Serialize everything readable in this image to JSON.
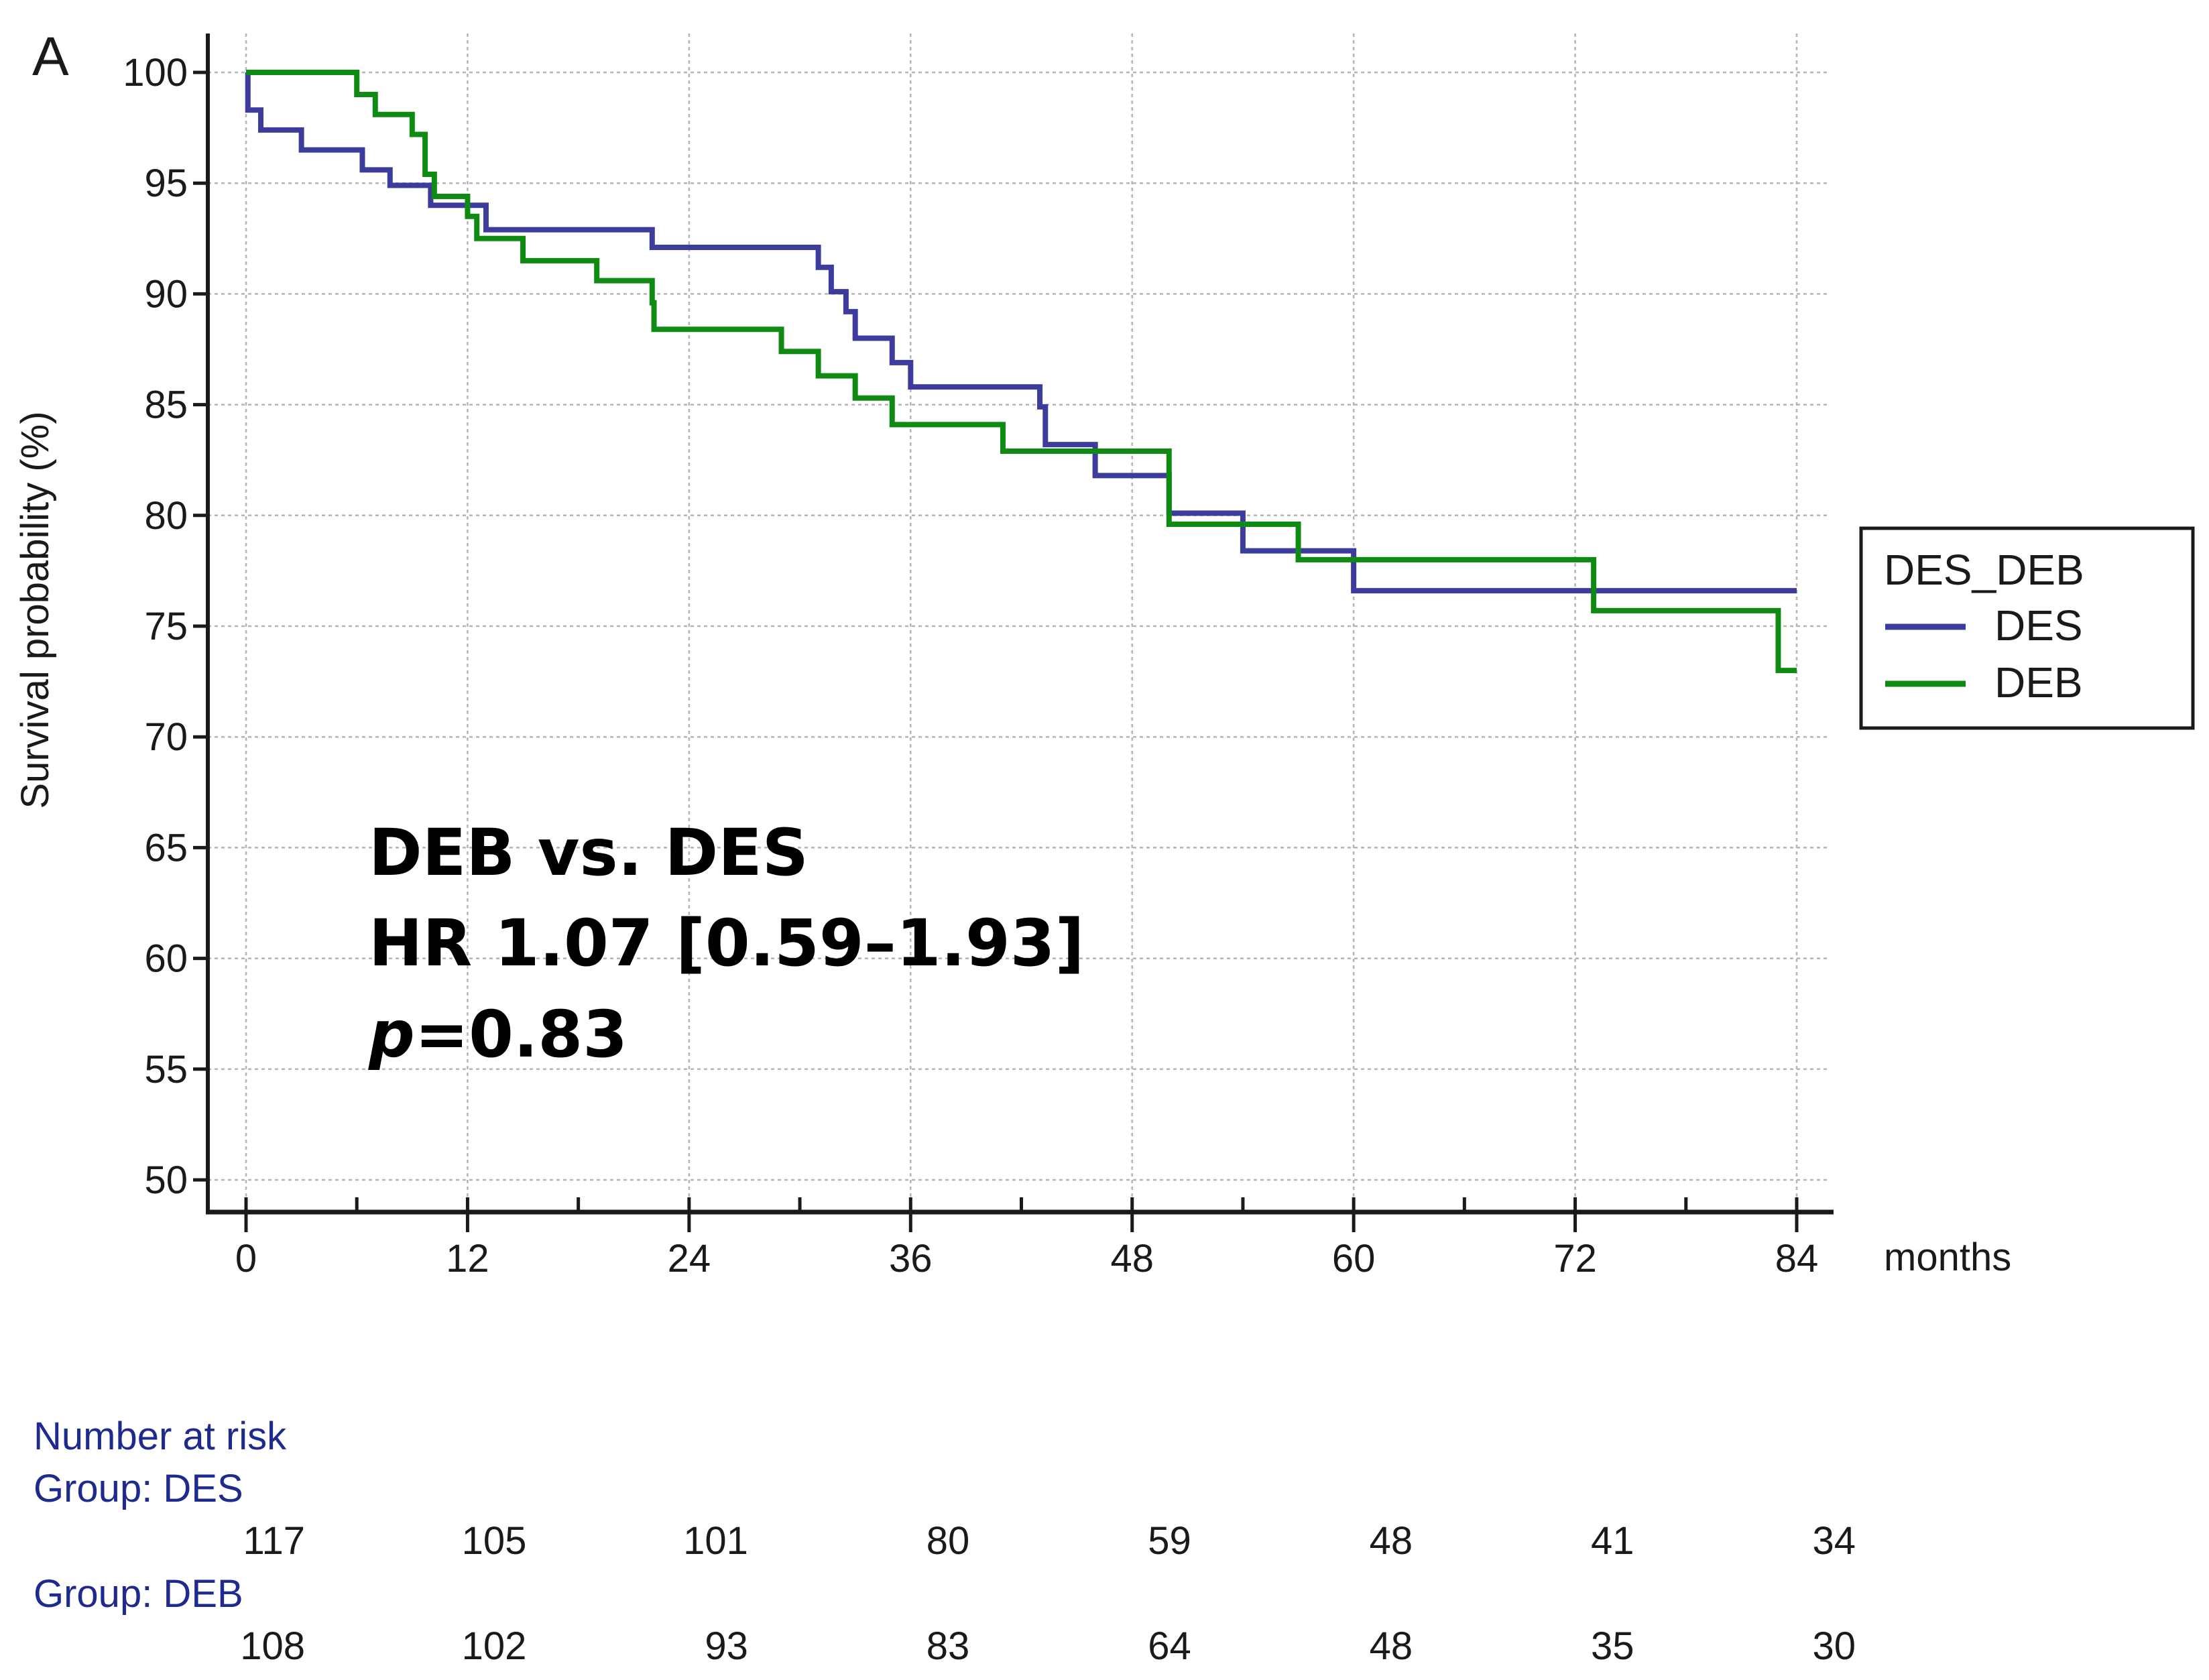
{
  "chart_data": {
    "type": "line",
    "subtype": "kaplan-meier",
    "panel_label": "A",
    "ylabel": "Survival probability (%)",
    "xlabel": "months",
    "xlim": [
      0,
      84
    ],
    "ylim": [
      50,
      100
    ],
    "x_ticks": [
      0,
      12,
      24,
      36,
      48,
      60,
      72,
      84
    ],
    "y_ticks": [
      50,
      55,
      60,
      65,
      70,
      75,
      80,
      85,
      90,
      95,
      100
    ],
    "grid": true,
    "legend": {
      "title": "DES_DEB",
      "placement": "right",
      "entries": [
        {
          "name": "DES",
          "color": "#3c3c9c"
        },
        {
          "name": "DEB",
          "color": "#0f8a12"
        }
      ]
    },
    "annotation": {
      "line1": "DEB vs. DES",
      "line2": "HR 1.07 [0.59–1.93]",
      "p_symbol": "p",
      "p_value": "=0.83"
    },
    "series": [
      {
        "name": "DES",
        "color": "#3c3c9c",
        "steps": [
          [
            0,
            100
          ],
          [
            0.1,
            98.3
          ],
          [
            0.8,
            97.4
          ],
          [
            3,
            96.5
          ],
          [
            6.3,
            95.6
          ],
          [
            7.8,
            94.9
          ],
          [
            10,
            94.0
          ],
          [
            13,
            92.9
          ],
          [
            22,
            92.1
          ],
          [
            31,
            91.2
          ],
          [
            31.7,
            90.1
          ],
          [
            32.5,
            89.2
          ],
          [
            33,
            88.0
          ],
          [
            35,
            86.9
          ],
          [
            36,
            85.8
          ],
          [
            43,
            84.9
          ],
          [
            43.3,
            83.2
          ],
          [
            46,
            81.8
          ],
          [
            50,
            80.1
          ],
          [
            54,
            78.4
          ],
          [
            60,
            76.6
          ],
          [
            84,
            76.6
          ]
        ]
      },
      {
        "name": "DEB",
        "color": "#0f8a12",
        "steps": [
          [
            0,
            100
          ],
          [
            6,
            99.0
          ],
          [
            7,
            98.1
          ],
          [
            9,
            97.2
          ],
          [
            9.7,
            95.4
          ],
          [
            10.2,
            94.4
          ],
          [
            12,
            93.5
          ],
          [
            12.5,
            92.5
          ],
          [
            15,
            91.5
          ],
          [
            19,
            90.6
          ],
          [
            22,
            89.6
          ],
          [
            22.1,
            88.4
          ],
          [
            29,
            87.4
          ],
          [
            31,
            86.3
          ],
          [
            33,
            85.3
          ],
          [
            35,
            84.1
          ],
          [
            41,
            82.9
          ],
          [
            50,
            79.6
          ],
          [
            57,
            78.0
          ],
          [
            73,
            75.7
          ],
          [
            83,
            73.0
          ],
          [
            84,
            73.0
          ]
        ]
      }
    ],
    "number_at_risk": {
      "title": "Number at risk",
      "groups": [
        {
          "label": "Group: DES",
          "values": [
            "117",
            "105",
            "101",
            "80",
            "59",
            "48",
            "41",
            "34"
          ]
        },
        {
          "label": "Group: DEB",
          "values": [
            "108",
            "102",
            "93",
            "83",
            "64",
            "48",
            "35",
            "30"
          ]
        }
      ]
    }
  },
  "colors": {
    "axis": "#1a1a1a",
    "grid": "#b5b5b5",
    "risk_header": "#1f2a8f"
  }
}
